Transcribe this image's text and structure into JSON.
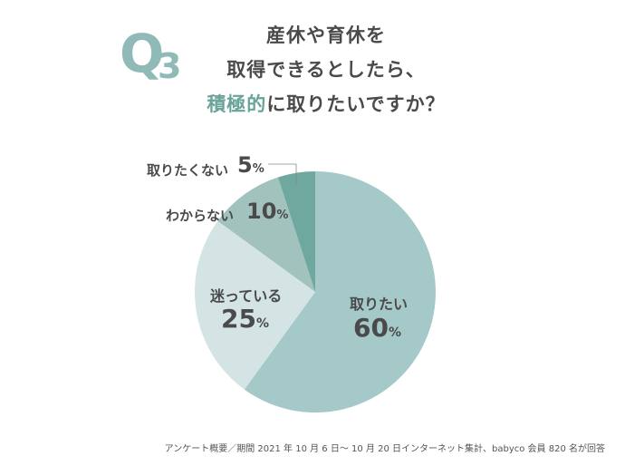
{
  "header": {
    "q_letter": "Q",
    "q_number": "3",
    "title_line1": "産休や育休を",
    "title_line2": "取得できるとしたら、",
    "title_line3_highlight": "積極的",
    "title_line3_rest": "に取りたいですか？"
  },
  "colors": {
    "accent": "#6aa39a",
    "slice_want": "#a5c8c9",
    "slice_unsure": "#d4e4e4",
    "slice_dontknow": "#a1c2bd",
    "slice_dontwant": "#6fa89f"
  },
  "chart_data": {
    "type": "pie",
    "slices": [
      {
        "label": "取りたい",
        "value": 60,
        "unit": "%"
      },
      {
        "label": "迷っている",
        "value": 25,
        "unit": "%"
      },
      {
        "label": "わからない",
        "value": 10,
        "unit": "%"
      },
      {
        "label": "取りたくない",
        "value": 5,
        "unit": "%"
      }
    ]
  },
  "footer": "アンケート概要／期間 2021 年 10 月 6 日～ 10 月 20 日インターネット集計、babyco 会員 820 名が回答"
}
